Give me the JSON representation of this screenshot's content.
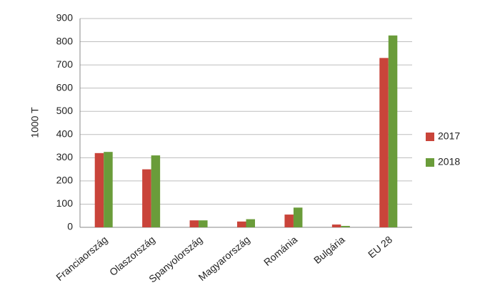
{
  "chart_data": {
    "type": "bar",
    "y_label": "1000 T",
    "categories": [
      "Franciaország",
      "Olaszország",
      "Spanyolország",
      "Magyarország",
      "Románia",
      "Bulgária",
      "EU 28"
    ],
    "series": [
      {
        "name": "2017",
        "color": "#c9443a",
        "values": [
          320,
          250,
          30,
          25,
          55,
          12,
          730
        ]
      },
      {
        "name": "2018",
        "color": "#6a9c3a",
        "values": [
          325,
          310,
          30,
          35,
          85,
          6,
          827
        ]
      }
    ],
    "ylim": [
      0,
      900
    ],
    "yticks": [
      0,
      100,
      200,
      300,
      400,
      500,
      600,
      700,
      800,
      900
    ],
    "grid": true,
    "legend": "right"
  }
}
